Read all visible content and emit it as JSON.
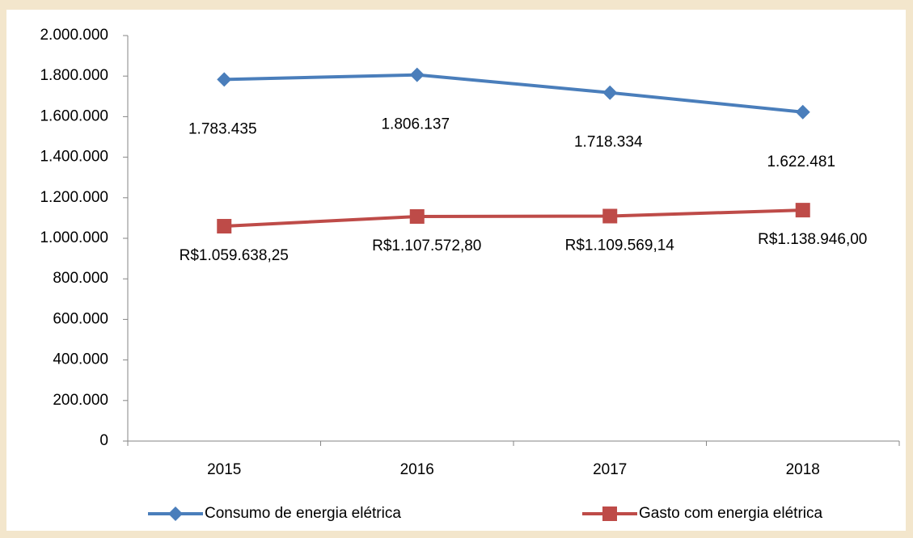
{
  "chart_data": {
    "type": "line",
    "categories": [
      "2015",
      "2016",
      "2017",
      "2018"
    ],
    "series": [
      {
        "name": "Consumo de energia elétrica",
        "color": "#4a7ebb",
        "marker": "diamond",
        "values": [
          1783435,
          1806137,
          1718334,
          1622481
        ],
        "value_labels": [
          "1.783.435",
          "1.806.137",
          "1.718.334",
          "1.622.481"
        ]
      },
      {
        "name": "Gasto com energia elétrica",
        "color": "#be4b48",
        "marker": "square",
        "values": [
          1059638.25,
          1107572.8,
          1109569.14,
          1138946.0
        ],
        "value_labels": [
          "R$1.059.638,25",
          "R$1.107.572,80",
          "R$1.109.569,14",
          "R$1.138.946,00"
        ]
      }
    ],
    "ylim": [
      0,
      2000000
    ],
    "yticks": [
      0,
      {
        "value": 200000,
        "label": "200.000"
      },
      {
        "value": 400000,
        "label": "400.000"
      },
      {
        "value": 600000,
        "label": "600.000"
      },
      {
        "value": 800000,
        "label": "800.000"
      },
      {
        "value": 1000000,
        "label": "1.000.000"
      },
      {
        "value": 1200000,
        "label": "1.200.000"
      },
      {
        "value": 1400000,
        "label": "1.400.000"
      },
      {
        "value": 1600000,
        "label": "1.600.000"
      },
      {
        "value": 1800000,
        "label": "1.800.000"
      },
      {
        "value": 2000000,
        "label": "2.000.000"
      }
    ],
    "grid": false,
    "legend": "bottom"
  }
}
